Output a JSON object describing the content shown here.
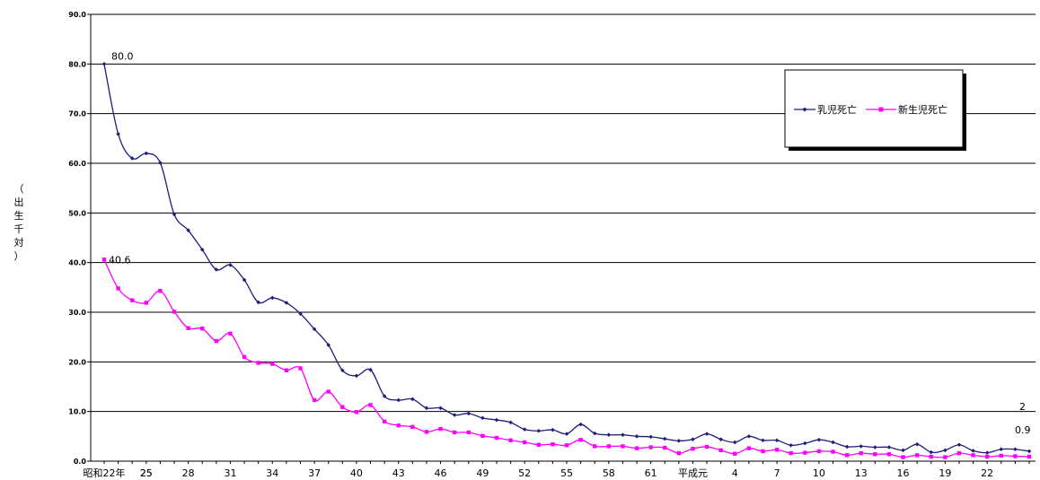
{
  "chart_data": {
    "type": "line",
    "title": "",
    "ylabel": [
      "（",
      "出",
      "生",
      "千",
      "対",
      "）"
    ],
    "ylim": [
      0,
      90
    ],
    "y_ticks": [
      "0.0",
      "10.0",
      "20.0",
      "30.0",
      "40.0",
      "50.0",
      "60.0",
      "70.0",
      "80.0",
      "90.0"
    ],
    "x_tick_labels": [
      "昭和22年",
      "25",
      "28",
      "31",
      "34",
      "37",
      "40",
      "43",
      "46",
      "49",
      "52",
      "55",
      "58",
      "61",
      "平成元",
      "4",
      "7",
      "10",
      "13",
      "16",
      "19",
      "22",
      "25"
    ],
    "x": [
      "昭和22年",
      "23",
      "24",
      "25",
      "26",
      "27",
      "28",
      "29",
      "30",
      "31",
      "32",
      "33",
      "34",
      "35",
      "36",
      "37",
      "38",
      "39",
      "40",
      "41",
      "42",
      "43",
      "44",
      "45",
      "46",
      "47",
      "48",
      "49",
      "50",
      "51",
      "52",
      "53",
      "54",
      "55",
      "56",
      "57",
      "58",
      "59",
      "60",
      "61",
      "62",
      "63",
      "平成元",
      "2",
      "3",
      "4",
      "5",
      "6",
      "7",
      "8",
      "9",
      "10",
      "11",
      "12",
      "13",
      "14",
      "15",
      "16",
      "17",
      "18",
      "19",
      "20",
      "21",
      "22",
      "23",
      "24",
      "25"
    ],
    "series": [
      {
        "name": "乳児死亡",
        "color": "#1f1f7a",
        "marker": "diamond",
        "values": [
          80.0,
          65.9,
          61.0,
          62.0,
          60.1,
          49.7,
          46.5,
          42.6,
          38.6,
          39.5,
          36.5,
          32.0,
          32.9,
          31.9,
          29.7,
          26.6,
          23.4,
          18.3,
          17.2,
          18.4,
          13.1,
          12.3,
          12.5,
          10.7,
          10.7,
          9.3,
          9.6,
          8.7,
          8.3,
          7.8,
          6.4,
          6.1,
          6.3,
          5.5,
          7.4,
          5.6,
          5.3,
          5.3,
          5.0,
          4.9,
          4.5,
          4.1,
          4.4,
          5.5,
          4.4,
          3.8,
          5.0,
          4.2,
          4.2,
          3.2,
          3.6,
          4.3,
          3.8,
          2.9,
          3.0,
          2.8,
          2.8,
          2.2,
          3.4,
          1.8,
          2.2,
          3.3,
          2.1,
          1.7,
          2.4,
          2.4,
          2.0
        ]
      },
      {
        "name": "新生児死亡",
        "color": "#ff00ff",
        "marker": "square",
        "values": [
          40.6,
          34.8,
          32.4,
          31.9,
          34.3,
          30.1,
          26.8,
          26.7,
          24.2,
          25.7,
          21.0,
          19.8,
          19.6,
          18.3,
          18.7,
          12.3,
          14.0,
          10.9,
          9.9,
          11.3,
          8.0,
          7.2,
          6.9,
          5.9,
          6.5,
          5.8,
          5.8,
          5.1,
          4.7,
          4.2,
          3.8,
          3.3,
          3.4,
          3.2,
          4.3,
          3.0,
          3.0,
          3.0,
          2.6,
          2.8,
          2.7,
          1.6,
          2.5,
          2.9,
          2.2,
          1.5,
          2.6,
          2.0,
          2.3,
          1.6,
          1.7,
          2.0,
          1.9,
          1.2,
          1.6,
          1.4,
          1.4,
          0.8,
          1.2,
          0.9,
          0.8,
          1.6,
          1.2,
          0.9,
          1.1,
          1.0,
          0.9
        ]
      }
    ],
    "annotations": {
      "infant_first": "80.0",
      "neonatal_first": "40.6",
      "infant_last": "2",
      "neonatal_last": "0.9"
    },
    "legend": {
      "position": "top-right",
      "entries": [
        "乳児死亡",
        "新生児死亡"
      ]
    },
    "grid": true
  }
}
